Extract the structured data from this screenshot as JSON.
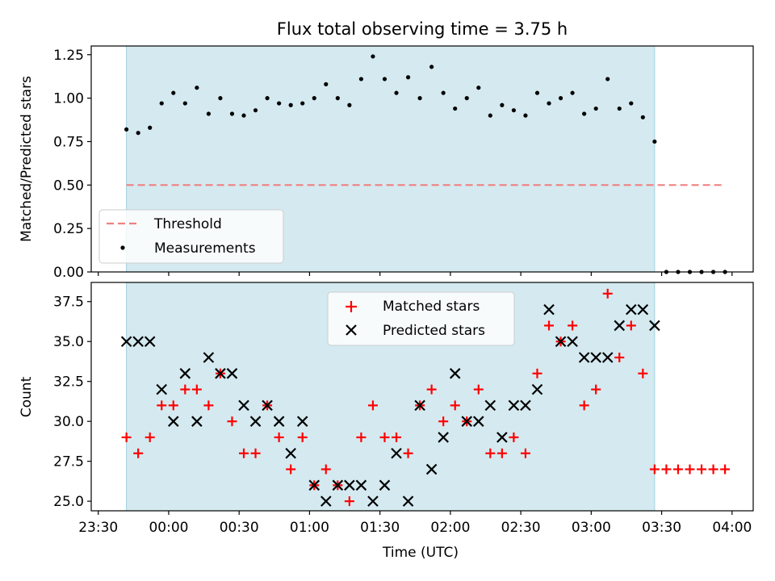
{
  "figure_title": "Flux total observing time = 3.75 h",
  "xlabel": "Time (UTC)",
  "x_ticks": [
    "23:30",
    "00:00",
    "00:30",
    "01:00",
    "01:30",
    "02:00",
    "02:30",
    "03:00",
    "03:30",
    "04:00"
  ],
  "colors": {
    "band": "#d4eaf0",
    "band_edge": "#9fd0dc",
    "threshold": "#f08080",
    "matched": "#ff0000",
    "predicted": "#000000",
    "measurement": "#000000"
  },
  "chart_data": [
    {
      "type": "scatter",
      "ylabel": "Matched/Predicted stars",
      "xlim": [
        "23:27",
        "04:09"
      ],
      "ylim": [
        0.0,
        1.3
      ],
      "y_ticks": [
        "0.00",
        "0.25",
        "0.50",
        "0.75",
        "1.00",
        "1.25"
      ],
      "shaded_interval": [
        "23:42",
        "03:27"
      ],
      "threshold_line": {
        "y": 0.5,
        "x": [
          "23:42",
          "03:57"
        ]
      },
      "legend_position": "lower-left",
      "legend": [
        "Threshold",
        "Measurements"
      ],
      "series": [
        {
          "name": "Measurements",
          "x": [
            "23:42",
            "23:47",
            "23:52",
            "23:57",
            "00:02",
            "00:07",
            "00:12",
            "00:17",
            "00:22",
            "00:27",
            "00:32",
            "00:37",
            "00:42",
            "00:47",
            "00:52",
            "00:57",
            "01:02",
            "01:07",
            "01:12",
            "01:17",
            "01:22",
            "01:27",
            "01:32",
            "01:37",
            "01:42",
            "01:47",
            "01:52",
            "01:57",
            "02:02",
            "02:07",
            "02:12",
            "02:17",
            "02:22",
            "02:27",
            "02:32",
            "02:37",
            "02:42",
            "02:47",
            "02:52",
            "02:57",
            "03:02",
            "03:07",
            "03:12",
            "03:17",
            "03:22",
            "03:27",
            "03:32",
            "03:37",
            "03:42",
            "03:47",
            "03:52",
            "03:57"
          ],
          "y": [
            0.82,
            0.8,
            0.83,
            0.97,
            1.03,
            0.97,
            1.06,
            0.91,
            1.0,
            0.91,
            0.9,
            0.93,
            1.0,
            0.97,
            0.96,
            0.97,
            1.0,
            1.08,
            1.0,
            0.96,
            1.11,
            1.24,
            1.11,
            1.03,
            1.12,
            1.0,
            1.18,
            1.03,
            0.94,
            1.0,
            1.06,
            0.9,
            0.96,
            0.93,
            0.9,
            1.03,
            0.97,
            1.0,
            1.03,
            0.91,
            0.94,
            1.11,
            0.94,
            0.97,
            0.89,
            0.75,
            0.0,
            0.0,
            0.0,
            0.0,
            0.0,
            0.0
          ]
        }
      ]
    },
    {
      "type": "scatter",
      "ylabel": "Count",
      "xlim": [
        "23:27",
        "04:09"
      ],
      "ylim": [
        24.4,
        38.7
      ],
      "y_ticks": [
        "25.0",
        "27.5",
        "30.0",
        "32.5",
        "35.0",
        "37.5"
      ],
      "shaded_interval": [
        "23:42",
        "03:27"
      ],
      "legend_position": "upper-center",
      "legend": [
        "Matched stars",
        "Predicted stars"
      ],
      "series": [
        {
          "name": "Matched stars",
          "marker": "+",
          "x": [
            "23:42",
            "23:47",
            "23:52",
            "23:57",
            "00:02",
            "00:07",
            "00:12",
            "00:17",
            "00:22",
            "00:27",
            "00:32",
            "00:37",
            "00:42",
            "00:47",
            "00:52",
            "00:57",
            "01:02",
            "01:07",
            "01:12",
            "01:17",
            "01:22",
            "01:27",
            "01:32",
            "01:37",
            "01:42",
            "01:47",
            "01:52",
            "01:57",
            "02:02",
            "02:07",
            "02:12",
            "02:17",
            "02:22",
            "02:27",
            "02:32",
            "02:37",
            "02:42",
            "02:47",
            "02:52",
            "02:57",
            "03:02",
            "03:07",
            "03:12",
            "03:17",
            "03:22",
            "03:27",
            "03:32",
            "03:37",
            "03:42",
            "03:47",
            "03:52",
            "03:57"
          ],
          "y": [
            29,
            28,
            29,
            31,
            31,
            32,
            32,
            31,
            33,
            30,
            28,
            28,
            31,
            29,
            27,
            29,
            26,
            27,
            26,
            25,
            29,
            31,
            29,
            29,
            28,
            31,
            32,
            30,
            31,
            30,
            32,
            28,
            28,
            29,
            28,
            33,
            36,
            35,
            36,
            31,
            32,
            38,
            34,
            36,
            33,
            27,
            27,
            27,
            27,
            27,
            27,
            27
          ]
        },
        {
          "name": "Predicted stars",
          "marker": "x",
          "x": [
            "23:42",
            "23:47",
            "23:52",
            "23:57",
            "00:02",
            "00:07",
            "00:12",
            "00:17",
            "00:22",
            "00:27",
            "00:32",
            "00:37",
            "00:42",
            "00:47",
            "00:52",
            "00:57",
            "01:02",
            "01:07",
            "01:12",
            "01:17",
            "01:22",
            "01:27",
            "01:32",
            "01:37",
            "01:42",
            "01:47",
            "01:52",
            "01:57",
            "02:02",
            "02:07",
            "02:12",
            "02:17",
            "02:22",
            "02:27",
            "02:32",
            "02:37",
            "02:42",
            "02:47",
            "02:52",
            "02:57",
            "03:02",
            "03:07",
            "03:12",
            "03:17",
            "03:22",
            "03:27"
          ],
          "y": [
            35,
            35,
            35,
            32,
            30,
            33,
            30,
            34,
            33,
            33,
            31,
            30,
            31,
            30,
            28,
            30,
            26,
            25,
            26,
            26,
            26,
            25,
            26,
            28,
            25,
            31,
            27,
            29,
            33,
            30,
            30,
            31,
            29,
            31,
            31,
            32,
            37,
            35,
            35,
            34,
            34,
            34,
            36,
            37,
            37,
            36
          ]
        }
      ]
    }
  ]
}
